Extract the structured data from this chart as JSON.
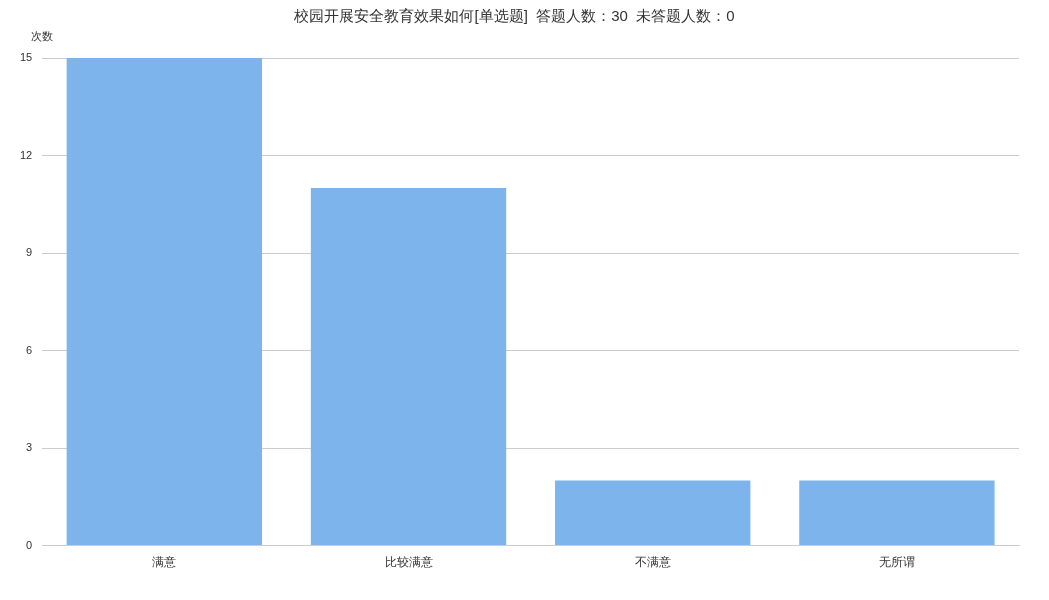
{
  "chart_data": {
    "type": "bar",
    "title": "校园开展安全教育效果如何[单选题]  答题人数：30  未答题人数：0",
    "ylabel": "次数",
    "categories": [
      "满意",
      "比较满意",
      "不满意",
      "无所谓"
    ],
    "values": [
      15,
      11,
      2,
      2
    ],
    "color": "#7cb4eb",
    "ylim": [
      0,
      15
    ],
    "yticks": [
      0,
      3,
      6,
      9,
      12,
      15
    ],
    "grid": "y",
    "legend": false
  }
}
